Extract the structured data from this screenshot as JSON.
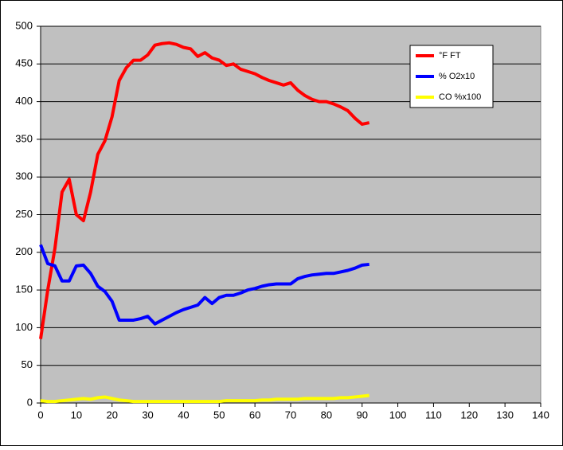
{
  "chart_data": {
    "type": "line",
    "x": [
      0,
      2,
      4,
      6,
      8,
      10,
      12,
      14,
      16,
      18,
      20,
      22,
      24,
      26,
      28,
      30,
      32,
      34,
      36,
      38,
      40,
      42,
      44,
      46,
      48,
      50,
      52,
      54,
      56,
      58,
      60,
      62,
      64,
      66,
      68,
      70,
      72,
      74,
      76,
      78,
      80,
      82,
      84,
      86,
      88,
      90,
      92
    ],
    "series": [
      {
        "name": "°F FT",
        "color": "#ff0000",
        "values": [
          85,
          150,
          205,
          280,
          297,
          250,
          242,
          280,
          330,
          348,
          380,
          428,
          445,
          455,
          455,
          462,
          475,
          477,
          478,
          476,
          472,
          470,
          460,
          465,
          458,
          455,
          448,
          450,
          443,
          440,
          437,
          432,
          428,
          425,
          422,
          425,
          415,
          408,
          403,
          400,
          400,
          397,
          393,
          388,
          378,
          370,
          372
        ]
      },
      {
        "name": "% O2x10",
        "color": "#0000ff",
        "values": [
          210,
          185,
          182,
          162,
          162,
          182,
          183,
          172,
          155,
          148,
          135,
          110,
          110,
          110,
          112,
          115,
          105,
          110,
          115,
          120,
          124,
          127,
          130,
          140,
          132,
          140,
          143,
          143,
          146,
          150,
          152,
          155,
          157,
          158,
          158,
          158,
          165,
          168,
          170,
          171,
          172,
          172,
          174,
          176,
          179,
          183,
          184
        ]
      },
      {
        "name": "CO %x100",
        "color": "#ffff00",
        "values": [
          3,
          2,
          2,
          3,
          4,
          5,
          6,
          5,
          7,
          8,
          6,
          4,
          3,
          2,
          2,
          2,
          2,
          2,
          2,
          2,
          2,
          2,
          2,
          2,
          2,
          2,
          3,
          3,
          3,
          3,
          3,
          4,
          4,
          5,
          5,
          5,
          5,
          6,
          6,
          6,
          6,
          6,
          7,
          7,
          8,
          9,
          10
        ]
      }
    ],
    "xlim": [
      0,
      140
    ],
    "xticks": [
      0,
      10,
      20,
      30,
      40,
      50,
      60,
      70,
      80,
      90,
      100,
      110,
      120,
      130,
      140
    ],
    "ylim": [
      0,
      500
    ],
    "yticks": [
      0,
      50,
      100,
      150,
      200,
      250,
      300,
      350,
      400,
      450,
      500
    ],
    "grid": true,
    "legend": "upper-right"
  }
}
